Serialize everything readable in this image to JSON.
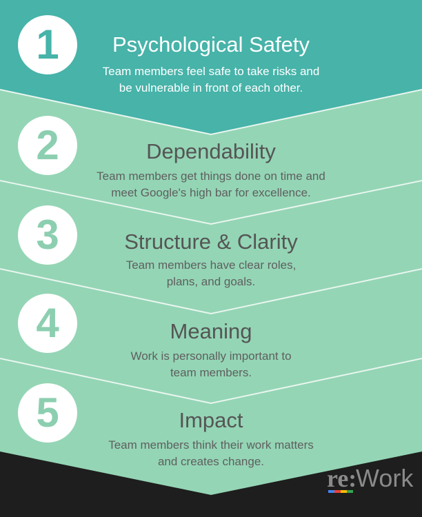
{
  "colors": {
    "header_teal": "#47b3a9",
    "section_green": "#94d5b5",
    "divider": "#e9f6ef",
    "number_color": "#8ccfb0",
    "number_color_first": "#47b3a9",
    "title_dark": "#555555",
    "desc_dark": "#5f5f5f",
    "text_light": "#ffffff",
    "background": "#1e1e1e",
    "logo_gray": "#8a8a8a",
    "logo_blue": "#4285f4",
    "logo_red": "#ea4335",
    "logo_yellow": "#fbbc05",
    "logo_green": "#34a853"
  },
  "items": [
    {
      "number": "1",
      "title": "Psychological Safety",
      "description": [
        "Team members feel safe to take risks and",
        "be vulnerable in front of each other."
      ]
    },
    {
      "number": "2",
      "title": "Dependability",
      "description": [
        "Team members get things done on time and",
        "meet Google's high bar for excellence."
      ]
    },
    {
      "number": "3",
      "title": "Structure & Clarity",
      "description": [
        "Team members have clear roles,",
        "plans, and goals."
      ]
    },
    {
      "number": "4",
      "title": "Meaning",
      "description": [
        "Work is personally important to",
        "team members."
      ]
    },
    {
      "number": "5",
      "title": "Impact",
      "description": [
        "Team members think their work matters",
        "and creates change."
      ]
    }
  ],
  "logo": {
    "prefix": "re:",
    "suffix": "Work"
  }
}
